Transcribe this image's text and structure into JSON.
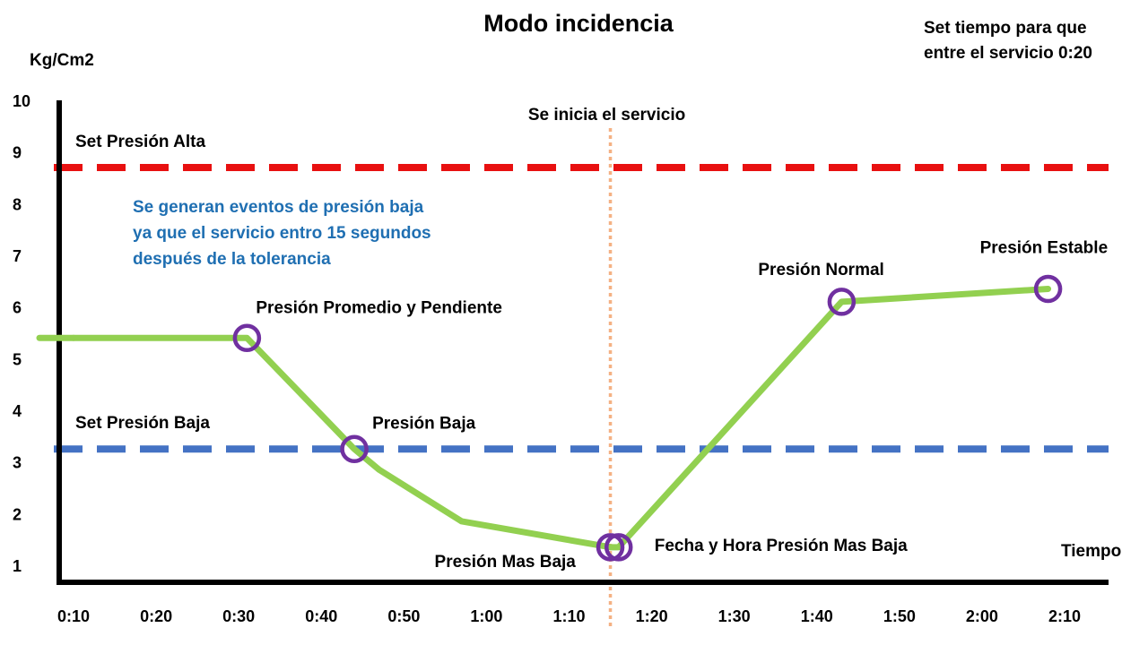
{
  "chart_data": {
    "type": "line",
    "title": "Modo incidencia",
    "ylabel": "Kg/Cm2",
    "xlabel": "Tiempo",
    "ylim": [
      0.6,
      10.2
    ],
    "yticks": [
      1,
      2,
      3,
      4,
      5,
      6,
      7,
      8,
      9,
      10
    ],
    "xtick_labels": [
      "0:10",
      "0:20",
      "0:30",
      "0:40",
      "0:50",
      "1:00",
      "1:10",
      "1:20",
      "1:30",
      "1:40",
      "1:50",
      "2:00",
      "2:10"
    ],
    "xtick_seconds": [
      10,
      20,
      30,
      40,
      50,
      60,
      70,
      80,
      90,
      100,
      110,
      120,
      130
    ],
    "xlim_seconds": [
      10,
      130
    ],
    "series": [
      {
        "color": "#92D050",
        "x": [
          "0:10",
          "0:31",
          "0:44",
          "0:47",
          "0:57",
          "1:15",
          "1:16",
          "1:43",
          "2:08"
        ],
        "y": [
          5.4,
          5.4,
          3.25,
          2.85,
          1.85,
          1.35,
          1.35,
          6.1,
          6.35
        ]
      }
    ],
    "reference_lines": [
      {
        "label": "Set Presión Alta",
        "y": 8.7,
        "color": "#E81010",
        "style": "dashed"
      },
      {
        "label": "Set Presión Baja",
        "y": 3.25,
        "color": "#4472C4",
        "style": "dashed"
      }
    ],
    "event_line": {
      "label": "Se inicia el servicio",
      "x": "1:15",
      "color": "#F4B183",
      "style": "dotted"
    },
    "markers": [
      {
        "label": "Presión Promedio y Pendiente",
        "x": "0:31",
        "y": 5.4
      },
      {
        "label": "Presión Baja",
        "x": "0:44",
        "y": 3.25
      },
      {
        "label": "Presión Mas Baja",
        "x": "1:15",
        "y": 1.35
      },
      {
        "label": "Fecha y Hora Presión Mas Baja",
        "x": "1:16",
        "y": 1.35
      },
      {
        "label": "Presión Normal",
        "x": "1:43",
        "y": 6.1
      },
      {
        "label": "Presión Estable",
        "x": "2:08",
        "y": 6.35
      }
    ],
    "marker_color": "#7030A0",
    "annotation": {
      "lines": [
        "Se generan eventos de presión baja",
        "ya que el servicio entro 15 segundos",
        "después de la tolerancia"
      ],
      "color": "#1F6FB2"
    },
    "note": {
      "lines": [
        "Set tiempo para que",
        "entre el servicio 0:20"
      ]
    },
    "grid": false,
    "legend": "none"
  }
}
